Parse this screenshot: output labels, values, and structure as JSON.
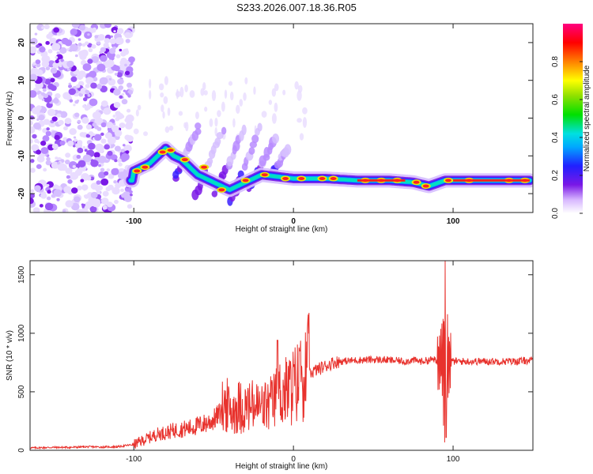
{
  "title": "S233.2026.007.18.36.R05",
  "chart_data": [
    {
      "type": "heatmap",
      "title": "S233.2026.007.18.36.R05",
      "xlabel": "Height of straight line (km)",
      "ylabel": "Frequency (Hz)",
      "xlim": [
        -165,
        150
      ],
      "ylim": [
        -25,
        25
      ],
      "x_ticks": [
        -100,
        0,
        100
      ],
      "y_ticks": [
        -20,
        -10,
        0,
        10,
        20
      ],
      "colorbar": {
        "label": "Normalized spectral amplitude",
        "ticks": [
          0.0,
          0.2,
          0.4,
          0.6,
          0.8
        ],
        "range": [
          0,
          1
        ]
      },
      "ridge": [
        {
          "x": -100,
          "y": -14
        },
        {
          "x": -95,
          "y": -13
        },
        {
          "x": -90,
          "y": -12
        },
        {
          "x": -85,
          "y": -10
        },
        {
          "x": -80,
          "y": -8
        },
        {
          "x": -75,
          "y": -10
        },
        {
          "x": -70,
          "y": -11
        },
        {
          "x": -60,
          "y": -15
        },
        {
          "x": -50,
          "y": -17
        },
        {
          "x": -40,
          "y": -19
        },
        {
          "x": -30,
          "y": -17
        },
        {
          "x": -20,
          "y": -15
        },
        {
          "x": -10,
          "y": -15.5
        },
        {
          "x": 0,
          "y": -16
        },
        {
          "x": 20,
          "y": -16
        },
        {
          "x": 40,
          "y": -16.5
        },
        {
          "x": 60,
          "y": -16.5
        },
        {
          "x": 75,
          "y": -17
        },
        {
          "x": 85,
          "y": -18
        },
        {
          "x": 95,
          "y": -16.5
        },
        {
          "x": 120,
          "y": -16.5
        },
        {
          "x": 148,
          "y": -16.5
        }
      ]
    },
    {
      "type": "line",
      "xlabel": "Height of straight line (km)",
      "ylabel": "SNR (10 * v/v)",
      "xlim": [
        -165,
        150
      ],
      "ylim": [
        0,
        1620
      ],
      "x_ticks": [
        -100,
        0,
        100
      ],
      "y_ticks": [
        0,
        500,
        1000,
        1500
      ],
      "color": "#e8322d",
      "series": [
        {
          "name": "SNR",
          "x": [
            -165,
            -150,
            -140,
            -130,
            -120,
            -110,
            -100,
            -95,
            -90,
            -85,
            -80,
            -75,
            -70,
            -65,
            -60,
            -55,
            -50,
            -45,
            -42,
            -40,
            -35,
            -30,
            -25,
            -20,
            -15,
            -12,
            -10,
            -8,
            -5,
            -2,
            0,
            2,
            5,
            8,
            10,
            15,
            20,
            25,
            30,
            40,
            50,
            60,
            70,
            75,
            80,
            85,
            88,
            90,
            92,
            94,
            95,
            96,
            97,
            98,
            100,
            110,
            120,
            130,
            140,
            150
          ],
          "y": [
            20,
            25,
            25,
            30,
            28,
            30,
            50,
            80,
            110,
            140,
            150,
            170,
            180,
            190,
            210,
            230,
            260,
            330,
            360,
            300,
            340,
            330,
            340,
            330,
            350,
            380,
            440,
            440,
            450,
            480,
            500,
            520,
            570,
            630,
            660,
            690,
            720,
            750,
            760,
            770,
            775,
            770,
            760,
            770,
            760,
            770,
            780,
            740,
            700,
            760,
            780,
            780,
            760,
            760,
            760,
            760,
            760,
            760,
            760,
            770
          ]
        }
      ]
    }
  ]
}
